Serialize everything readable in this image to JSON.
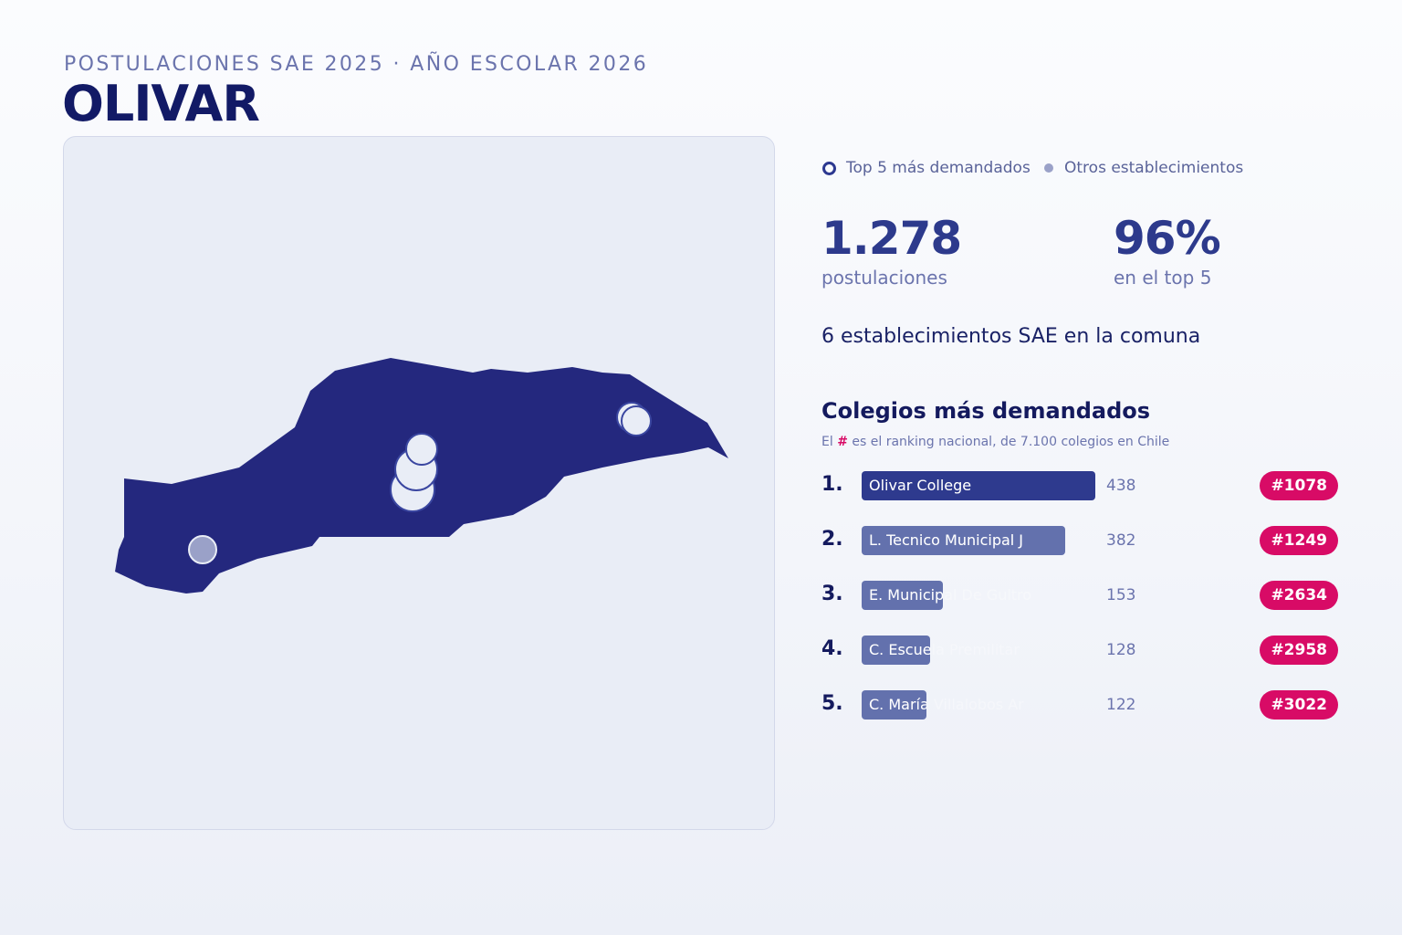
{
  "header": {
    "kicker": "POSTULACIONES SAE 2025 · AÑO ESCOLAR 2026",
    "title": "OLIVAR"
  },
  "legend": {
    "top5": "Top 5 más demandados",
    "others": "Otros establecimientos"
  },
  "stats": {
    "applications_value": "1.278",
    "applications_label": "postulaciones",
    "top5_share_value": "96%",
    "top5_share_label": "en el top 5"
  },
  "establishments_line": "6 establecimientos SAE en la comuna",
  "ranking": {
    "title": "Colegios más demandados",
    "subtitle_prefix": "El",
    "subtitle_hash": "#",
    "subtitle_suffix": "es el ranking nacional, de 7.100 colegios en Chile",
    "rows": [
      {
        "pos": "1.",
        "name": "Olivar College",
        "value": 438,
        "value_label": "438",
        "rank": "#1078"
      },
      {
        "pos": "2.",
        "name": "L. Tecnico Municipal J",
        "value": 382,
        "value_label": "382",
        "rank": "#1249"
      },
      {
        "pos": "3.",
        "name": "E. Municipal De Gultro",
        "value": 153,
        "value_label": "153",
        "rank": "#2634"
      },
      {
        "pos": "4.",
        "name": "C. Escuela Premilitar",
        "value": 128,
        "value_label": "128",
        "rank": "#2958"
      },
      {
        "pos": "5.",
        "name": "C. María Villalobos Ar",
        "value": 122,
        "value_label": "122",
        "rank": "#3022"
      }
    ]
  },
  "colors": {
    "commune_fill": "#24287e",
    "accent": "#2e3a8e",
    "badge": "#d80b66",
    "bar_secondary": "#6371ad"
  }
}
